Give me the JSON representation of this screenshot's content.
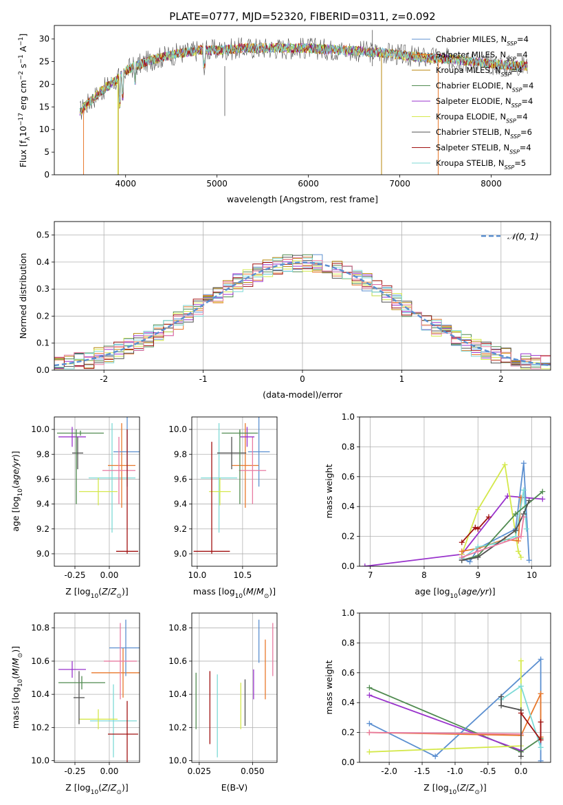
{
  "title": "PLATE=0777, MJD=52320, FIBERID=0311, z=0.092",
  "colors": {
    "chabrier_miles": "#5b8fd0",
    "salpeter_miles": "#e8772a",
    "kroupa_miles": "#b8860b",
    "chabrier_elodie": "#4f8a4f",
    "salpeter_elodie": "#9932cc",
    "kroupa_elodie": "#d4e84a",
    "chabrier_stelib": "#505050",
    "salpeter_stelib": "#a01010",
    "kroupa_stelib": "#7ddad6",
    "pink": "#e87aa0",
    "gaussian": "#5b8fd0"
  },
  "chart_data": [
    {
      "type": "line",
      "panel": "spectrum",
      "xlabel": "wavelength [Angstrom, rest frame]",
      "ylabel": "Flux [f_λ10^-17 erg cm^-2 s^-1 A^-1]",
      "xlim": [
        3220,
        8650
      ],
      "ylim": [
        0,
        33
      ],
      "xticks": [
        4000,
        5000,
        6000,
        7000,
        8000
      ],
      "yticks": [
        0,
        5,
        10,
        15,
        20,
        25,
        30
      ],
      "grid": false,
      "legend_position": "right",
      "series": [
        {
          "name": "Chabrier MILES, N_SSP=4"
        },
        {
          "name": "Salpeter MILES, N_SSP=4"
        },
        {
          "name": "Kroupa MILES, N_SSP=4"
        },
        {
          "name": "Chabrier ELODIE, N_SSP=4"
        },
        {
          "name": "Salpeter ELODIE, N_SSP=4"
        },
        {
          "name": "Kroupa ELODIE, N_SSP=4"
        },
        {
          "name": "Chabrier STELIB, N_SSP=6"
        },
        {
          "name": "Salpeter STELIB, N_SSP=4"
        },
        {
          "name": "Kroupa STELIB, N_SSP=5"
        }
      ],
      "continuum": {
        "x": [
          3500,
          3700,
          3900,
          4000,
          4100,
          4300,
          4500,
          4800,
          5000,
          5300,
          5600,
          6000,
          6400,
          6800,
          7200,
          7600,
          8000,
          8400
        ],
        "y": [
          14,
          18,
          21,
          23,
          24,
          25.5,
          26.5,
          27.5,
          27.5,
          28,
          28,
          28,
          27.5,
          27,
          26,
          25.5,
          24.5,
          24
        ]
      }
    },
    {
      "type": "histogram",
      "panel": "residuals",
      "xlabel": "(data-model)/error",
      "ylabel": "Normed distribution",
      "xlim": [
        -2.5,
        2.5
      ],
      "ylim": [
        0,
        0.55
      ],
      "xticks": [
        -2,
        -1,
        0,
        1,
        2
      ],
      "yticks": [
        0.0,
        0.1,
        0.2,
        0.3,
        0.4,
        0.5
      ],
      "grid": true,
      "legend_position": "top-right",
      "legend": "N(0,1)",
      "bin_edges_start": -2.5,
      "bin_width": 0.1,
      "reference_curve": "gaussian mean 0 sigma 1"
    },
    {
      "type": "scatter",
      "panel": "age-vs-Z",
      "xlabel": "Z [log10(Z/Z_sun)]",
      "ylabel": "age [log10(age/yr)]",
      "xlim": [
        -0.4,
        0.22
      ],
      "ylim": [
        8.9,
        10.1
      ],
      "xticks": [
        -0.25,
        0.0
      ],
      "yticks": [
        9.0,
        9.2,
        9.4,
        9.6,
        9.8,
        10.0
      ],
      "grid": true,
      "points": [
        {
          "x": 0.02,
          "y": 9.61,
          "xerr": 0.17,
          "yerr": 0.44,
          "c": "kroupa_stelib"
        },
        {
          "x": 0.09,
          "y": 9.71,
          "xerr": 0.1,
          "yerr": 0.34,
          "c": "salpeter_miles"
        },
        {
          "x": 0.13,
          "y": 9.82,
          "xerr": 0.1,
          "yerr": 0.28,
          "c": "chabrier_miles"
        },
        {
          "x": 0.07,
          "y": 9.67,
          "xerr": 0.12,
          "yerr": 0.27,
          "c": "pink"
        },
        {
          "x": -0.08,
          "y": 9.5,
          "xerr": 0.14,
          "yerr": 0.11,
          "c": "kroupa_elodie"
        },
        {
          "x": -0.23,
          "y": 9.81,
          "xerr": 0.04,
          "yerr": 0.13,
          "c": "chabrier_stelib"
        },
        {
          "x": -0.27,
          "y": 9.94,
          "xerr": 0.1,
          "yerr": 0.08,
          "c": "salpeter_elodie"
        },
        {
          "x": -0.21,
          "y": 9.97,
          "xerr": 0.17,
          "yerr": 0.02,
          "c": "chabrier_elodie"
        },
        {
          "x": 0.13,
          "y": 9.02,
          "xerr": 0.08,
          "yerr": 0.0,
          "c": "salpeter_stelib"
        },
        {
          "x": 0.13,
          "y": 9.5,
          "xerr": 0.0,
          "yerr": 0.5,
          "c": "salpeter_stelib"
        },
        {
          "x": -0.24,
          "y": 9.7,
          "xerr": 0.0,
          "yerr": 0.3,
          "c": "chabrier_elodie"
        }
      ]
    },
    {
      "type": "scatter",
      "panel": "age-vs-mass",
      "xlabel": "mass [log10(M/M_sun)]",
      "ylabel": "",
      "xlim": [
        9.94,
        10.88
      ],
      "ylim": [
        8.9,
        10.1
      ],
      "xticks": [
        10.0,
        10.5
      ],
      "yticks": [
        9.0,
        9.2,
        9.4,
        9.6,
        9.8,
        10.0
      ],
      "grid": true,
      "points": [
        {
          "x": 10.24,
          "y": 9.61,
          "xerr": 0.2,
          "yerr": 0.44,
          "c": "kroupa_stelib"
        },
        {
          "x": 10.53,
          "y": 9.71,
          "xerr": 0.15,
          "yerr": 0.34,
          "c": "salpeter_miles"
        },
        {
          "x": 10.68,
          "y": 9.82,
          "xerr": 0.12,
          "yerr": 0.28,
          "c": "chabrier_miles"
        },
        {
          "x": 10.61,
          "y": 9.67,
          "xerr": 0.15,
          "yerr": 0.27,
          "c": "pink"
        },
        {
          "x": 10.25,
          "y": 9.5,
          "xerr": 0.12,
          "yerr": 0.11,
          "c": "kroupa_elodie"
        },
        {
          "x": 10.38,
          "y": 9.81,
          "xerr": 0.16,
          "yerr": 0.13,
          "c": "chabrier_stelib"
        },
        {
          "x": 10.55,
          "y": 9.94,
          "xerr": 0.08,
          "yerr": 0.08,
          "c": "salpeter_elodie"
        },
        {
          "x": 10.47,
          "y": 9.97,
          "xerr": 0.2,
          "yerr": 0.02,
          "c": "chabrier_elodie"
        },
        {
          "x": 10.16,
          "y": 9.02,
          "xerr": 0.2,
          "yerr": 0.0,
          "c": "salpeter_stelib"
        },
        {
          "x": 10.16,
          "y": 9.45,
          "xerr": 0.0,
          "yerr": 0.45,
          "c": "salpeter_stelib"
        },
        {
          "x": 10.47,
          "y": 9.7,
          "xerr": 0.0,
          "yerr": 0.3,
          "c": "chabrier_elodie"
        }
      ]
    },
    {
      "type": "line",
      "panel": "weight-vs-age",
      "xlabel": "age [log10(age/yr)]",
      "ylabel": "mass weight",
      "xlim": [
        6.8,
        10.35
      ],
      "ylim": [
        0.0,
        1.0
      ],
      "xticks": [
        7,
        8,
        9,
        10
      ],
      "yticks": [
        0.0,
        0.2,
        0.4,
        0.6,
        0.8,
        1.0
      ],
      "grid": true,
      "series": [
        {
          "c": "salpeter_elodie",
          "x": [
            6.9,
            8.7,
            9.55,
            10.2
          ],
          "y": [
            0.0,
            0.08,
            0.47,
            0.45
          ]
        },
        {
          "c": "kroupa_elodie",
          "x": [
            8.7,
            9.0,
            9.5,
            9.75,
            9.8
          ],
          "y": [
            0.08,
            0.38,
            0.68,
            0.1,
            0.06
          ]
        },
        {
          "c": "salpeter_stelib",
          "x": [
            8.7,
            8.95,
            9.0,
            9.2
          ],
          "y": [
            0.16,
            0.26,
            0.25,
            0.33
          ]
        },
        {
          "c": "chabrier_miles",
          "x": [
            8.7,
            8.85,
            9.0,
            9.7,
            9.85,
            9.95
          ],
          "y": [
            0.05,
            0.03,
            0.12,
            0.25,
            0.69,
            0.04
          ]
        },
        {
          "c": "salpeter_miles",
          "x": [
            8.7,
            9.0,
            9.5,
            9.75,
            9.8
          ],
          "y": [
            0.1,
            0.12,
            0.18,
            0.17,
            0.46
          ]
        },
        {
          "c": "kroupa_stelib",
          "x": [
            8.7,
            9.0,
            9.3,
            9.7,
            9.85,
            9.9
          ],
          "y": [
            0.05,
            0.13,
            0.15,
            0.2,
            0.51,
            0.25
          ]
        },
        {
          "c": "chabrier_elodie",
          "x": [
            8.7,
            9.0,
            9.7,
            10.2
          ],
          "y": [
            0.04,
            0.07,
            0.35,
            0.5
          ]
        },
        {
          "c": "chabrier_stelib",
          "x": [
            8.7,
            9.0,
            9.7,
            9.85,
            9.95
          ],
          "y": [
            0.04,
            0.06,
            0.24,
            0.35,
            0.44
          ]
        },
        {
          "c": "pink",
          "x": [
            8.7,
            9.0,
            9.8,
            9.85
          ],
          "y": [
            0.06,
            0.1,
            0.2,
            0.33
          ]
        }
      ]
    },
    {
      "type": "scatter",
      "panel": "mass-vs-Z",
      "xlabel": "Z [log10(Z/Z_sun)]",
      "ylabel": "mass [log10(M/M_sun)]",
      "xlim": [
        -0.4,
        0.22
      ],
      "ylim": [
        9.99,
        10.89
      ],
      "xticks": [
        -0.25,
        0.0
      ],
      "yticks": [
        10.0,
        10.2,
        10.4,
        10.6,
        10.8
      ],
      "grid": true,
      "points": [
        {
          "x": 0.03,
          "y": 10.24,
          "xerr": 0.17,
          "yerr": 0.22,
          "c": "kroupa_stelib"
        },
        {
          "x": 0.1,
          "y": 10.53,
          "xerr": 0.23,
          "yerr": 0.15,
          "c": "salpeter_miles"
        },
        {
          "x": 0.12,
          "y": 10.68,
          "xerr": 0.12,
          "yerr": 0.17,
          "c": "chabrier_miles"
        },
        {
          "x": 0.08,
          "y": 10.6,
          "xerr": 0.12,
          "yerr": 0.23,
          "c": "pink"
        },
        {
          "x": -0.08,
          "y": 10.25,
          "xerr": 0.14,
          "yerr": 0.06,
          "c": "kroupa_elodie"
        },
        {
          "x": -0.22,
          "y": 10.38,
          "xerr": 0.04,
          "yerr": 0.16,
          "c": "chabrier_stelib"
        },
        {
          "x": -0.27,
          "y": 10.55,
          "xerr": 0.1,
          "yerr": 0.05,
          "c": "salpeter_elodie"
        },
        {
          "x": -0.2,
          "y": 10.47,
          "xerr": 0.17,
          "yerr": 0.04,
          "c": "chabrier_elodie"
        },
        {
          "x": 0.1,
          "y": 10.16,
          "xerr": 0.11,
          "yerr": 0.0,
          "c": "salpeter_stelib"
        },
        {
          "x": 0.13,
          "y": 10.16,
          "xerr": 0.0,
          "yerr": 0.2,
          "c": "salpeter_stelib"
        }
      ]
    },
    {
      "type": "scatter",
      "panel": "mass-vs-ebv",
      "xlabel": "E(B-V)",
      "ylabel": "",
      "xlim": [
        0.0215,
        0.0615
      ],
      "ylim": [
        9.99,
        10.89
      ],
      "xticks": [
        0.025,
        0.05
      ],
      "yticks": [
        10.0,
        10.2,
        10.4,
        10.6,
        10.8
      ],
      "grid": true,
      "points": [
        {
          "x": 0.0235,
          "y": 10.36,
          "yerr": 0.17,
          "c": "chabrier_elodie"
        },
        {
          "x": 0.03,
          "y": 10.32,
          "yerr": 0.22,
          "c": "salpeter_stelib"
        },
        {
          "x": 0.0335,
          "y": 10.27,
          "yerr": 0.25,
          "c": "kroupa_stelib"
        },
        {
          "x": 0.0445,
          "y": 10.33,
          "yerr": 0.14,
          "c": "kroupa_elodie"
        },
        {
          "x": 0.0465,
          "y": 10.35,
          "yerr": 0.14,
          "c": "chabrier_stelib"
        },
        {
          "x": 0.0505,
          "y": 10.46,
          "yerr": 0.09,
          "c": "salpeter_elodie"
        },
        {
          "x": 0.053,
          "y": 10.72,
          "yerr": 0.13,
          "c": "chabrier_miles"
        },
        {
          "x": 0.056,
          "y": 10.55,
          "yerr": 0.18,
          "c": "salpeter_miles"
        },
        {
          "x": 0.0595,
          "y": 10.67,
          "yerr": 0.16,
          "c": "pink"
        }
      ]
    },
    {
      "type": "line",
      "panel": "weight-vs-Z",
      "xlabel": "Z [log10(Z/Z_sun)]",
      "ylabel": "mass weight",
      "xlim": [
        -2.45,
        0.45
      ],
      "ylim": [
        0.0,
        1.0
      ],
      "xticks": [
        -2.0,
        -1.5,
        -1.0,
        -0.5,
        0.0
      ],
      "yticks": [
        0.0,
        0.2,
        0.4,
        0.6,
        0.8,
        1.0
      ],
      "grid": true,
      "series": [
        {
          "c": "chabrier_elodie",
          "x": [
            -2.3,
            0.0,
            0.3
          ],
          "y": [
            0.5,
            0.07,
            0.16
          ]
        },
        {
          "c": "salpeter_elodie",
          "x": [
            -2.3,
            0.0
          ],
          "y": [
            0.45,
            0.08
          ]
        },
        {
          "c": "chabrier_miles",
          "x": [
            -2.3,
            -1.3,
            0.3,
            0.3
          ],
          "y": [
            0.26,
            0.04,
            0.69,
            0.01
          ]
        },
        {
          "c": "kroupa_elodie",
          "x": [
            -2.3,
            0.0,
            0.0
          ],
          "y": [
            0.07,
            0.11,
            0.68
          ]
        },
        {
          "c": "salpeter_miles",
          "x": [
            -2.3,
            0.0,
            0.3,
            0.3
          ],
          "y": [
            0.2,
            0.18,
            0.46,
            0.17
          ]
        },
        {
          "c": "pink",
          "x": [
            -2.3,
            0.0
          ],
          "y": [
            0.2,
            0.19
          ]
        },
        {
          "c": "kroupa_stelib",
          "x": [
            -0.3,
            0.0,
            0.3
          ],
          "y": [
            0.42,
            0.51,
            0.1
          ]
        },
        {
          "c": "chabrier_stelib",
          "x": [
            -0.3,
            -0.3,
            0.0,
            0.0
          ],
          "y": [
            0.44,
            0.38,
            0.35,
            0.04
          ]
        },
        {
          "c": "salpeter_stelib",
          "x": [
            0.0,
            0.3,
            0.3
          ],
          "y": [
            0.33,
            0.15,
            0.27
          ]
        }
      ]
    }
  ]
}
